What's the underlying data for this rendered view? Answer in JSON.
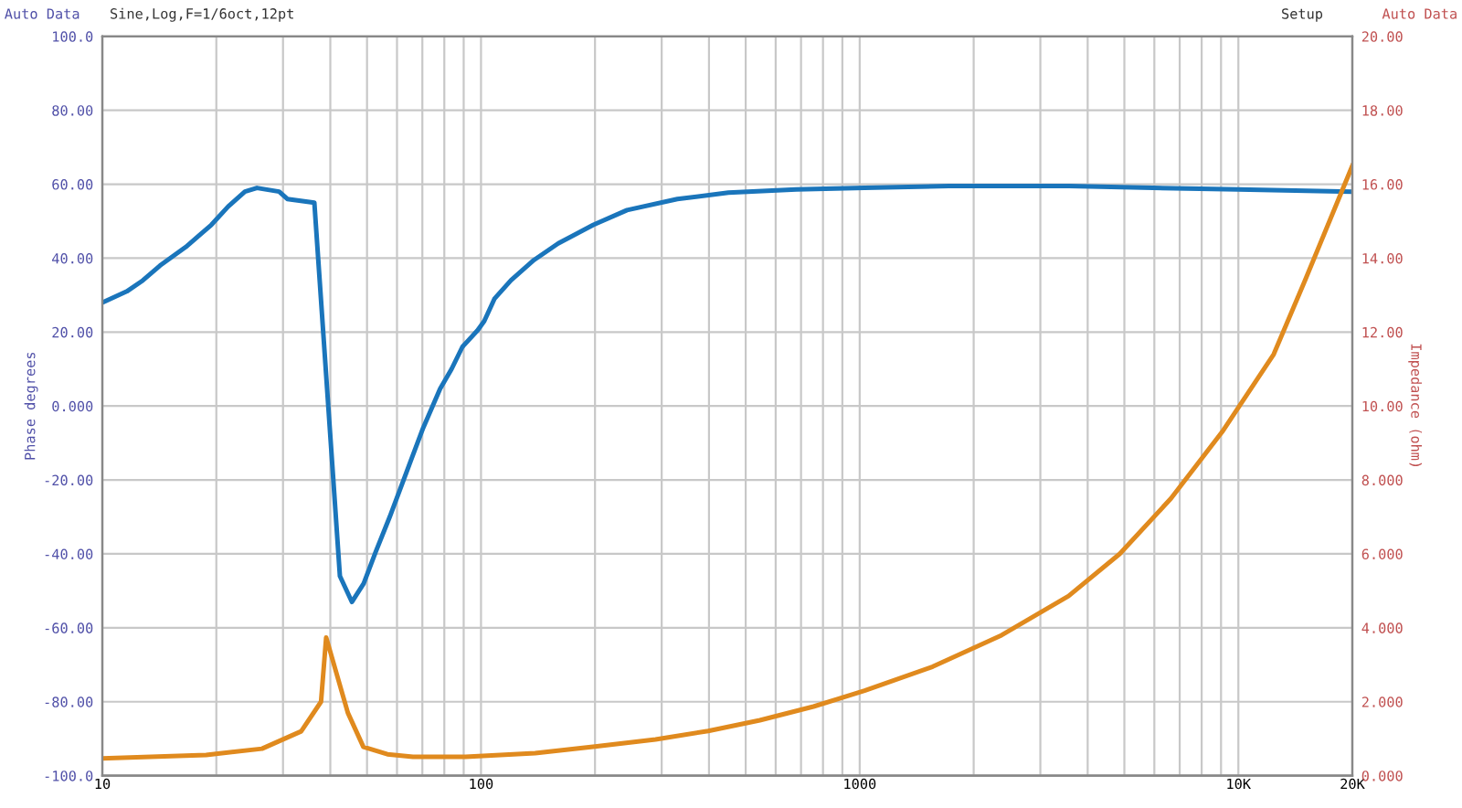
{
  "chart_data": {
    "type": "line",
    "xlabel": null,
    "ylabel": "Phase degrees",
    "y2label": "Impedance (ohm)",
    "annotations": [
      "Auto Data",
      "Sine,Log,F=1/6oct,12pt",
      "Setup",
      "Auto Data"
    ],
    "log": "x",
    "grid": true,
    "marker": "none",
    "line_style": "solid",
    "xlim": [
      10,
      20000
    ],
    "xticks": [
      10,
      {
        "value": 20,
        "label": null
      },
      {
        "value": 30,
        "label": null
      },
      {
        "value": 40,
        "label": null
      },
      {
        "value": 50,
        "label": null
      },
      {
        "value": 60,
        "label": null
      },
      {
        "value": 70,
        "label": null
      },
      {
        "value": 80,
        "label": null
      },
      {
        "value": 90,
        "label": null
      },
      100,
      {
        "value": 200,
        "label": null
      },
      {
        "value": 300,
        "label": null
      },
      {
        "value": 400,
        "label": null
      },
      {
        "value": 500,
        "label": null
      },
      {
        "value": 600,
        "label": null
      },
      {
        "value": 700,
        "label": null
      },
      {
        "value": 800,
        "label": null
      },
      {
        "value": 900,
        "label": null
      },
      1000,
      {
        "value": 2000,
        "label": null
      },
      {
        "value": 3000,
        "label": null
      },
      {
        "value": 4000,
        "label": null
      },
      {
        "value": 5000,
        "label": null
      },
      {
        "value": 6000,
        "label": null
      },
      {
        "value": 7000,
        "label": null
      },
      {
        "value": 8000,
        "label": null
      },
      {
        "value": 9000,
        "label": null
      },
      {
        "value": 10000,
        "label": "10K"
      },
      {
        "value": 20000,
        "label": "20K"
      }
    ],
    "ylim": [
      -100,
      100
    ],
    "yticks": [
      {
        "value": -100,
        "label": "-100.0"
      },
      {
        "value": -80,
        "label": "-80.00"
      },
      {
        "value": -60,
        "label": "-60.00"
      },
      {
        "value": -40,
        "label": "-40.00"
      },
      {
        "value": -20,
        "label": "-20.00"
      },
      {
        "value": 0,
        "label": "0.000"
      },
      {
        "value": 20,
        "label": "20.00"
      },
      {
        "value": 40,
        "label": "40.00"
      },
      {
        "value": 60,
        "label": "60.00"
      },
      {
        "value": 80,
        "label": "80.00"
      },
      {
        "value": 100,
        "label": "100.0"
      }
    ],
    "y2lim": [
      0,
      20
    ],
    "y2ticks": [
      {
        "value": 0,
        "label": "0.000"
      },
      {
        "value": 2,
        "label": "2.000"
      },
      {
        "value": 4,
        "label": "4.000"
      },
      {
        "value": 6,
        "label": "6.000"
      },
      {
        "value": 8,
        "label": "8.000"
      },
      {
        "value": 10,
        "label": "10.00"
      },
      {
        "value": 12,
        "label": "12.00"
      },
      {
        "value": 14,
        "label": "14.00"
      },
      {
        "value": 16,
        "label": "16.00"
      },
      {
        "value": 18,
        "label": "18.00"
      },
      {
        "value": 20,
        "label": "20.00"
      }
    ],
    "series": [
      {
        "color": "#1a75bb",
        "x": [
          10,
          11.6,
          12.8,
          14.2,
          16.6,
          19.4,
          21.5,
          23.8,
          25.6,
          29.3,
          30.8,
          36.3,
          42.4,
          45.6,
          49,
          52.7,
          57.4,
          63.5,
          70.3,
          78,
          83.6,
          89.3,
          98,
          102,
          108.5,
          120,
          138,
          160,
          198,
          243,
          330,
          450,
          680,
          1030,
          1720,
          3570,
          5950,
          9990,
          20000
        ],
        "values": [
          28,
          31,
          34,
          38,
          43,
          49,
          54,
          58,
          59,
          58,
          56,
          55,
          -46,
          -53,
          -48,
          -39.5,
          -30,
          -18,
          -6,
          4.7,
          10,
          16,
          20.5,
          23,
          29,
          34,
          39.5,
          44,
          49,
          53,
          56,
          57.7,
          58.6,
          59,
          59.5,
          59.5,
          59,
          58.6,
          58
        ]
      },
      {
        "color": "#e08a1e",
        "axis": "y2",
        "x": [
          10,
          18.8,
          26.4,
          33.5,
          37.8,
          39,
          44.5,
          48.9,
          56.6,
          66.1,
          91,
          139,
          200,
          289,
          398,
          545,
          755,
          1030,
          1560,
          2370,
          3560,
          4860,
          6640,
          9060,
          12400,
          15000,
          20000
        ],
        "values": [
          0.47,
          0.56,
          0.73,
          1.2,
          2.0,
          3.74,
          1.7,
          0.78,
          0.58,
          0.51,
          0.51,
          0.61,
          0.79,
          0.98,
          1.21,
          1.5,
          1.87,
          2.3,
          2.95,
          3.8,
          4.86,
          6.0,
          7.5,
          9.3,
          11.4,
          13.4,
          16.5
        ]
      }
    ]
  }
}
